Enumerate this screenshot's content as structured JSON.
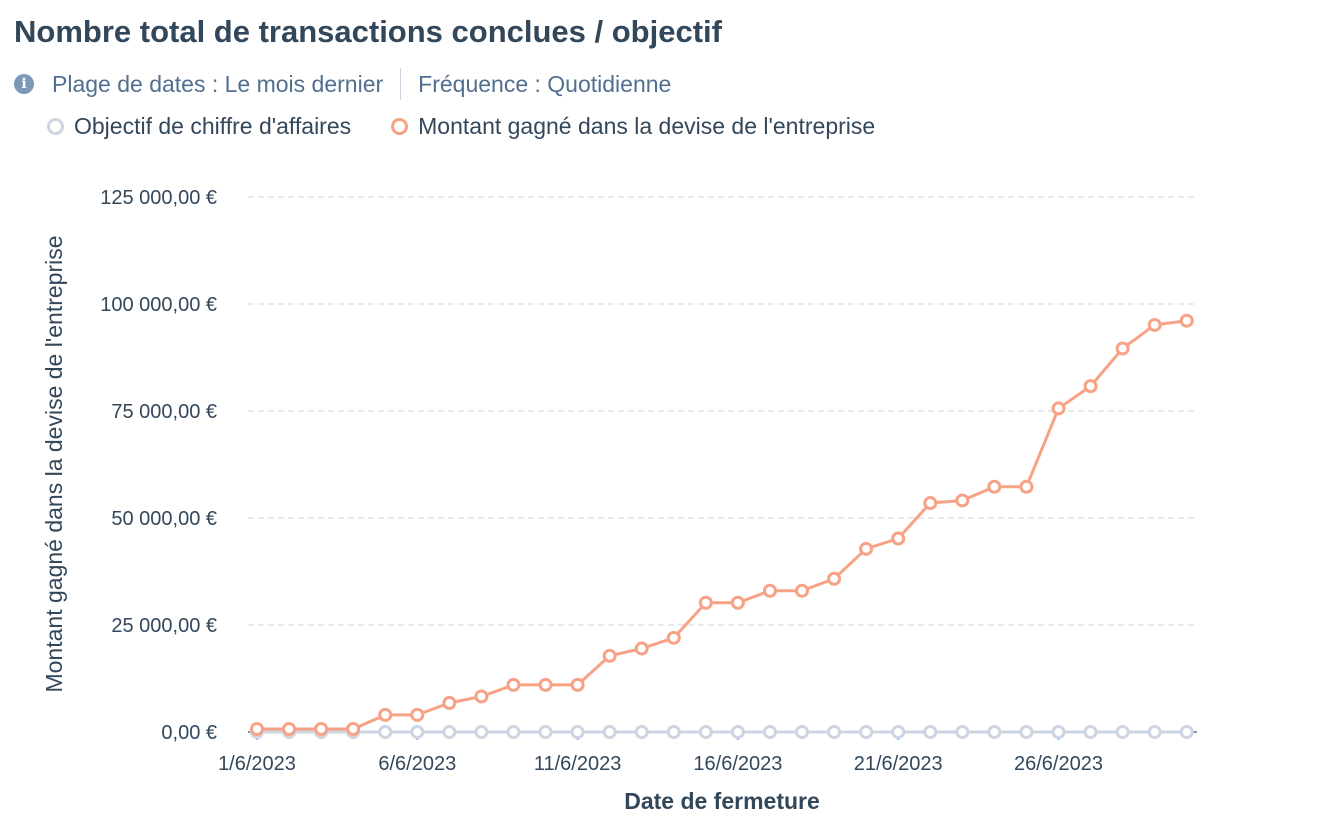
{
  "header": {
    "title": "Nombre total de transactions conclues / objectif",
    "date_range": "Plage de dates : Le mois dernier",
    "frequency": "Fréquence : Quotidienne",
    "info_icon": "info-circle-icon"
  },
  "chart_data": {
    "type": "line",
    "title": "Nombre total de transactions conclues / objectif",
    "xlabel": "Date de fermeture",
    "ylabel": "Montant gagné dans la devise de l'entreprise",
    "legend_placement": "top-left",
    "grid": true,
    "x": [
      1,
      2,
      3,
      4,
      5,
      6,
      7,
      8,
      9,
      10,
      11,
      12,
      13,
      14,
      15,
      16,
      17,
      18,
      19,
      20,
      21,
      22,
      23,
      24,
      25,
      26,
      27,
      28,
      29,
      30
    ],
    "x_tick_labels": [
      "1/6/2023",
      "6/6/2023",
      "11/6/2023",
      "16/6/2023",
      "21/6/2023",
      "26/6/2023"
    ],
    "x_tick_positions": [
      1,
      6,
      11,
      16,
      21,
      26
    ],
    "ylim": [
      0,
      125000
    ],
    "y_ticks": [
      0,
      25000,
      50000,
      75000,
      100000,
      125000
    ],
    "y_tick_labels": [
      "0,00 €",
      "25 000,00 €",
      "50 000,00 €",
      "75 000,00 €",
      "100 000,00 €",
      "125 000,00 €"
    ],
    "series": [
      {
        "name": "Objectif de chiffre d'affaires",
        "color": "#cbd6e2",
        "values": [
          0,
          0,
          0,
          0,
          0,
          0,
          0,
          0,
          0,
          0,
          0,
          0,
          0,
          0,
          0,
          0,
          0,
          0,
          0,
          0,
          0,
          0,
          0,
          0,
          0,
          0,
          0,
          0,
          0,
          0
        ]
      },
      {
        "name": "Montant gagné dans la devise de l'entreprise",
        "color": "#f8a285",
        "values": [
          700,
          700,
          700,
          700,
          4000,
          4000,
          6800,
          8300,
          11000,
          11000,
          11000,
          17800,
          19500,
          22000,
          30200,
          30200,
          33000,
          33000,
          35800,
          42800,
          45200,
          53500,
          54100,
          57300,
          57300,
          75600,
          80800,
          89600,
          95100,
          96100
        ]
      }
    ]
  }
}
